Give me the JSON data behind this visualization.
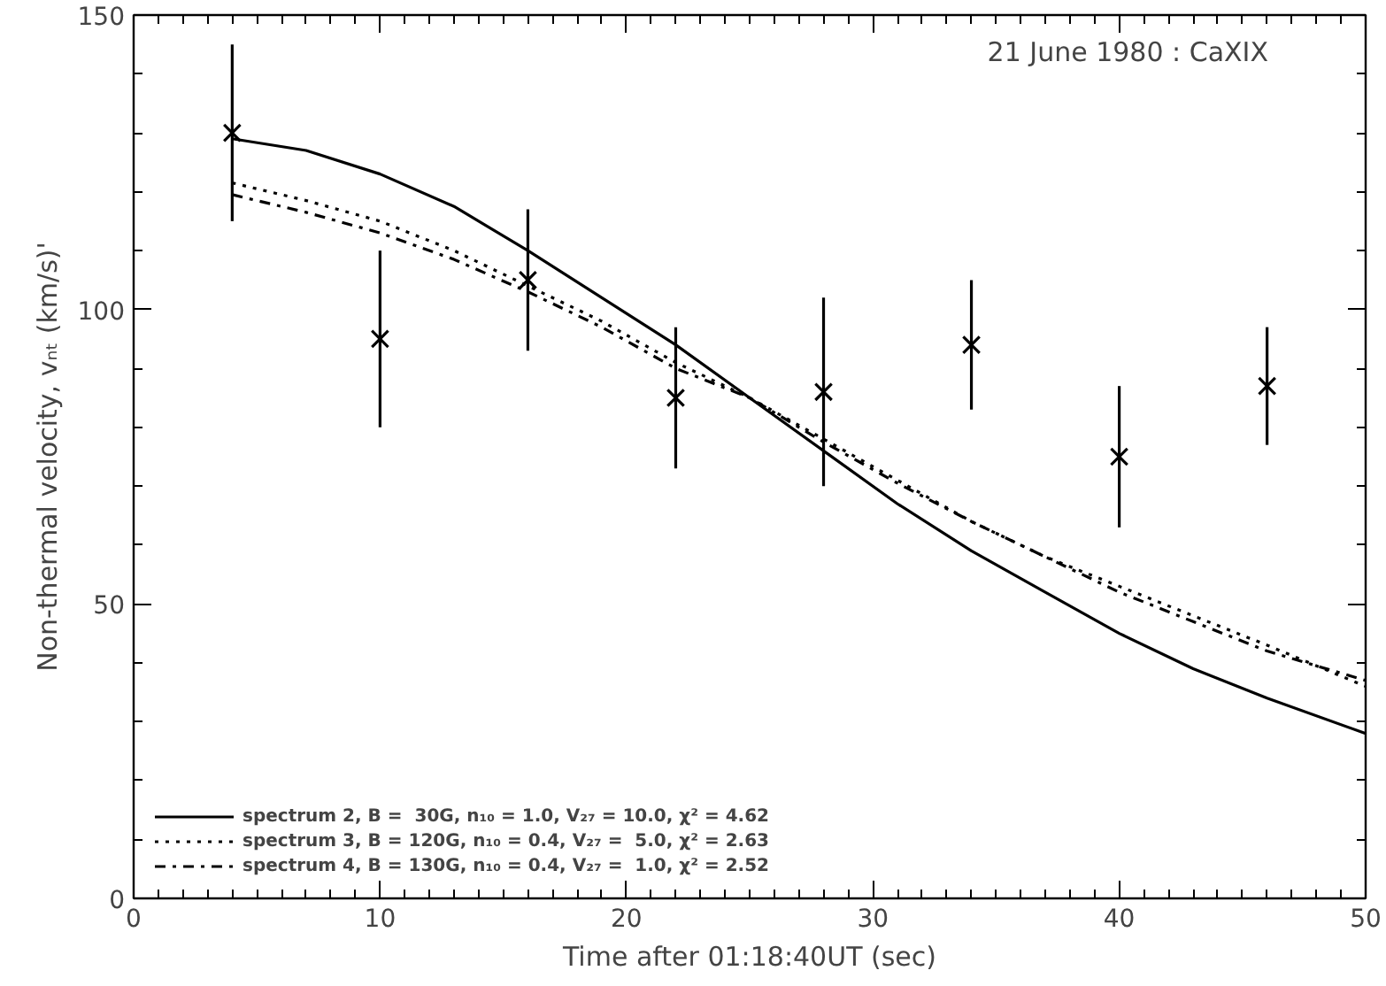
{
  "chart_data": {
    "type": "line",
    "xlabel": "Time after 01:18:40UT (sec)",
    "ylabel": "Non-thermal velocity, vₙₜ (km/s)'",
    "annotations": [
      "21 June 1980 : CaXIX"
    ],
    "xlim": [
      0,
      50
    ],
    "xticks": [
      0,
      10,
      20,
      30,
      40,
      50
    ],
    "ylim": [
      0,
      150
    ],
    "yticks": [
      0,
      50,
      100,
      150
    ],
    "grid": false,
    "legend": "bottom left",
    "series": [
      {
        "type": "scatter",
        "marker": "cross",
        "color": "#000000",
        "x": [
          4,
          10,
          16,
          22,
          28,
          34,
          40,
          46
        ],
        "values": [
          130,
          95,
          105,
          85,
          86,
          94,
          75,
          87
        ],
        "errors": [
          15,
          15,
          12,
          12,
          16,
          11,
          12,
          10
        ]
      },
      {
        "name": "spectrum 2, B =  30G, n₁₀ = 1.0, V₂₇ = 10.0, χ² = 4.62",
        "color": "#000000",
        "line_style": "solid",
        "x": [
          4,
          7,
          10,
          13,
          16,
          19,
          22,
          25,
          28,
          31,
          34,
          37,
          40,
          43,
          46,
          50
        ],
        "values": [
          129,
          127,
          123,
          117.5,
          110,
          102,
          94,
          85,
          76,
          67,
          59,
          52,
          45,
          39,
          34,
          28
        ]
      },
      {
        "name": "spectrum 3, B = 120G, n₁₀ = 0.4, V₂₇ =  5.0, χ² = 2.63",
        "color": "#000000",
        "line_style": "dotted",
        "x": [
          4,
          7,
          10,
          13,
          16,
          19,
          22,
          25,
          28,
          31,
          34,
          37,
          40,
          43,
          46,
          50
        ],
        "values": [
          121.5,
          118.5,
          115,
          110,
          104,
          98,
          91,
          85,
          78,
          71,
          64,
          58,
          53,
          48,
          43,
          36
        ]
      },
      {
        "name": "spectrum 4, B = 130G, n₁₀ = 0.4, V₂₇ =  1.0, χ² = 2.52",
        "color": "#000000",
        "line_style": "dashdot",
        "x": [
          4,
          7,
          10,
          13,
          16,
          19,
          22,
          25,
          28,
          31,
          34,
          37,
          40,
          43,
          46,
          50
        ],
        "values": [
          119.5,
          116.5,
          113,
          108.5,
          103,
          97,
          90,
          85,
          77.5,
          70.5,
          64,
          58,
          52,
          47,
          42,
          37
        ]
      }
    ]
  }
}
